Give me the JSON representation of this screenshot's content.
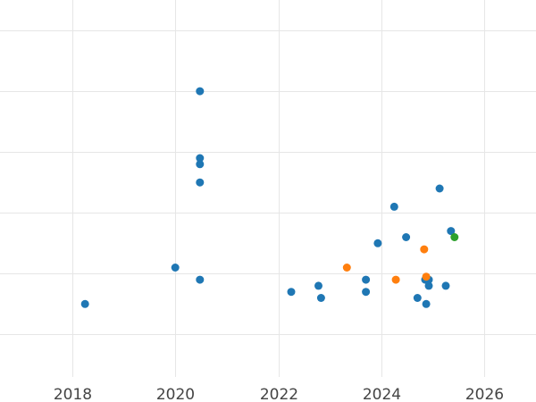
{
  "chart_data": {
    "type": "scatter",
    "title": "",
    "xlabel": "",
    "ylabel": "",
    "xlim": [
      2016.6,
      2027.0
    ],
    "ylim": [
      -0.2,
      6.0
    ],
    "x_ticks": [
      2018,
      2020,
      2022,
      2024,
      2026
    ],
    "x_tick_labels": [
      "2018",
      "2020",
      "2022",
      "2024",
      "2026"
    ],
    "y_grid": [
      0.5,
      1.5,
      2.5,
      3.5,
      4.5,
      5.5
    ],
    "grid": true,
    "legend": "none",
    "series": [
      {
        "color": "#1f77b4",
        "points": [
          {
            "x": 2018.25,
            "y": 1.0
          },
          {
            "x": 2020.0,
            "y": 1.6
          },
          {
            "x": 2020.48,
            "y": 1.4
          },
          {
            "x": 2020.48,
            "y": 3.0
          },
          {
            "x": 2020.48,
            "y": 3.3
          },
          {
            "x": 2020.48,
            "y": 3.4
          },
          {
            "x": 2020.48,
            "y": 4.5
          },
          {
            "x": 2022.25,
            "y": 1.2
          },
          {
            "x": 2022.78,
            "y": 1.3
          },
          {
            "x": 2022.83,
            "y": 1.1
          },
          {
            "x": 2023.7,
            "y": 1.4
          },
          {
            "x": 2023.7,
            "y": 1.2
          },
          {
            "x": 2023.93,
            "y": 2.0
          },
          {
            "x": 2024.25,
            "y": 2.6
          },
          {
            "x": 2024.48,
            "y": 2.1
          },
          {
            "x": 2024.7,
            "y": 1.1
          },
          {
            "x": 2024.85,
            "y": 1.4
          },
          {
            "x": 2024.87,
            "y": 1.0
          },
          {
            "x": 2024.92,
            "y": 1.4
          },
          {
            "x": 2024.92,
            "y": 1.3
          },
          {
            "x": 2025.13,
            "y": 2.9
          },
          {
            "x": 2025.25,
            "y": 1.3
          },
          {
            "x": 2025.35,
            "y": 2.2
          }
        ]
      },
      {
        "color": "#ff7f0e",
        "points": [
          {
            "x": 2023.33,
            "y": 1.6
          },
          {
            "x": 2024.28,
            "y": 1.4
          },
          {
            "x": 2024.83,
            "y": 1.9
          },
          {
            "x": 2024.87,
            "y": 1.45
          }
        ]
      },
      {
        "color": "#2ca02c",
        "points": [
          {
            "x": 2025.42,
            "y": 2.1
          }
        ]
      }
    ]
  }
}
